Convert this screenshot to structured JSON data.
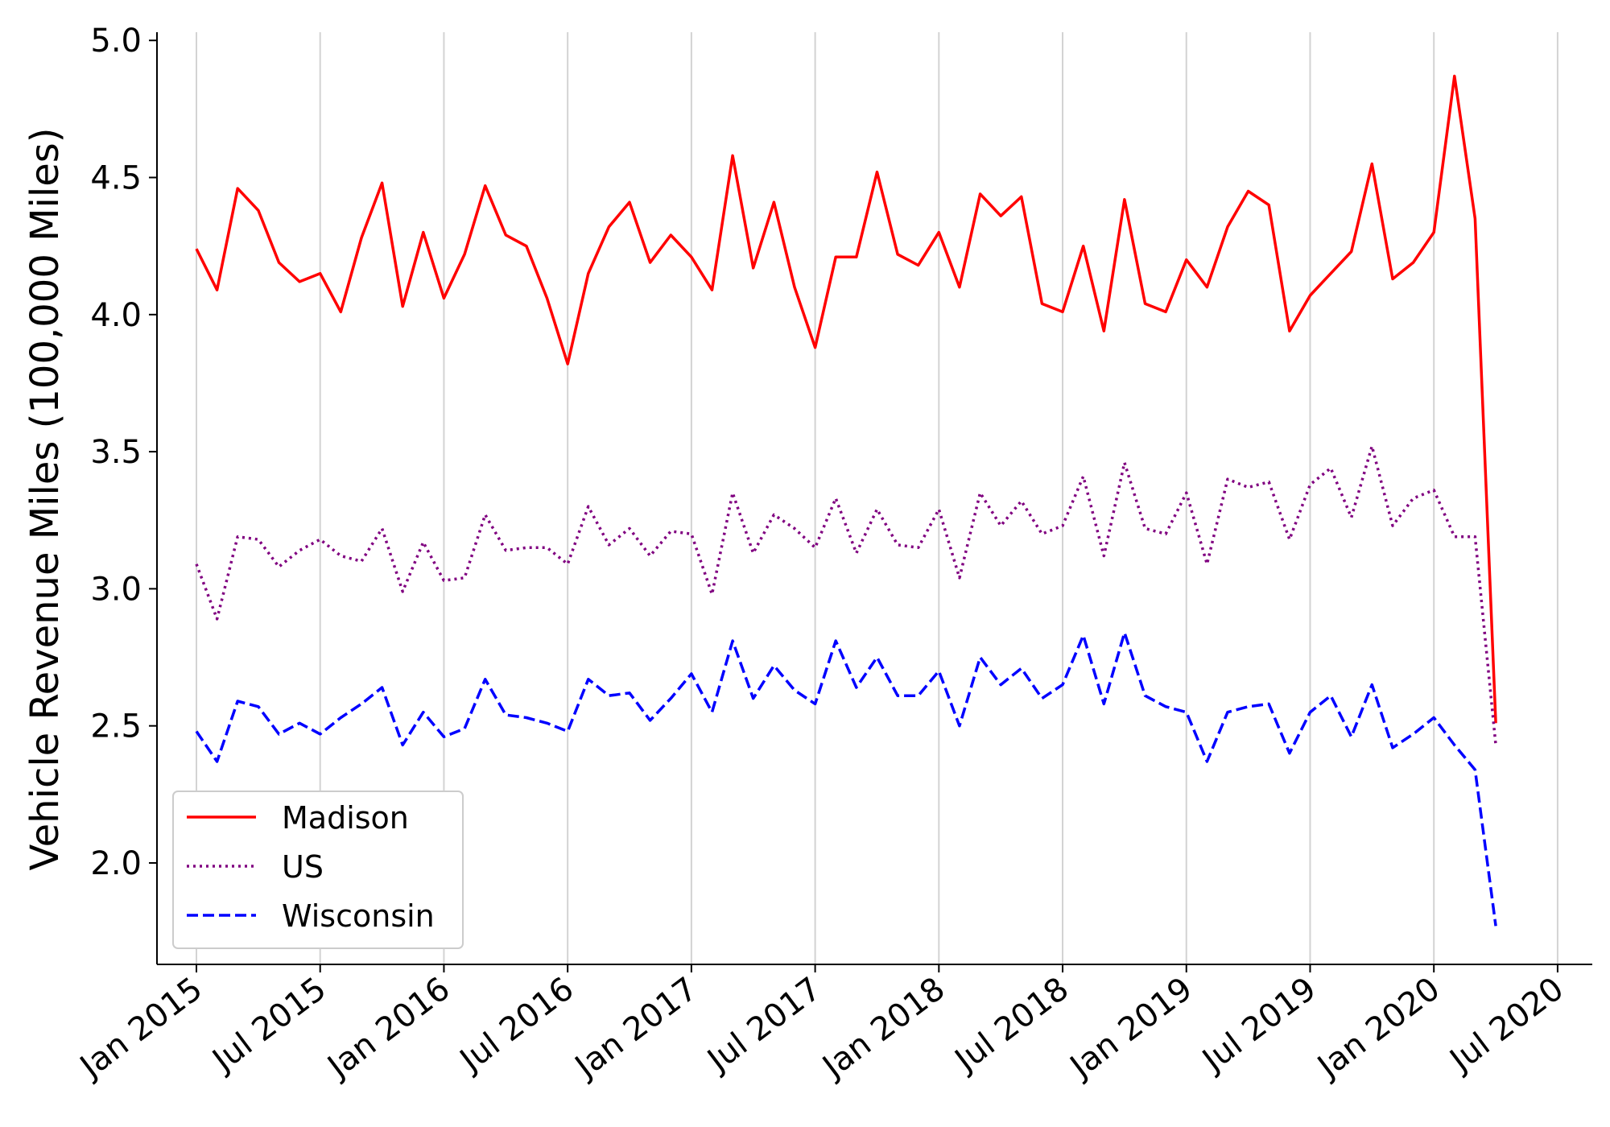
{
  "chart_data": {
    "type": "line",
    "title": "",
    "xlabel": "",
    "ylabel": "Vehicle Revenue Miles (100,000 Miles)",
    "x_start": "Jan 2015",
    "x_end": "Jun 2020",
    "x_ticks": [
      "Jan 2015",
      "Jul 2015",
      "Jan 2016",
      "Jul 2016",
      "Jan 2017",
      "Jul 2017",
      "Jan 2018",
      "Jul 2018",
      "Jan 2019",
      "Jul 2019",
      "Jan 2020",
      "Jul 2020"
    ],
    "y_ticks": [
      "2.0",
      "2.5",
      "3.0",
      "3.5",
      "4.0",
      "4.5",
      "5.0"
    ],
    "ylim": [
      1.63,
      5.03
    ],
    "grid": "vertical",
    "legend_position": "bottom-left",
    "series": [
      {
        "name": "Madison",
        "color": "#ff0000",
        "dash": "solid",
        "values": [
          4.24,
          4.09,
          4.46,
          4.38,
          4.19,
          4.12,
          4.15,
          4.01,
          4.28,
          4.48,
          4.03,
          4.3,
          4.06,
          4.22,
          4.47,
          4.29,
          4.25,
          4.06,
          3.82,
          4.15,
          4.32,
          4.41,
          4.19,
          4.29,
          4.21,
          4.09,
          4.58,
          4.17,
          4.41,
          4.1,
          3.88,
          4.21,
          4.21,
          4.52,
          4.22,
          4.18,
          4.3,
          4.1,
          4.44,
          4.36,
          4.43,
          4.04,
          4.01,
          4.25,
          3.94,
          4.42,
          4.04,
          4.01,
          4.2,
          4.1,
          4.32,
          4.45,
          4.4,
          3.94,
          4.07,
          4.15,
          4.23,
          4.55,
          4.13,
          4.19,
          4.3,
          4.87,
          4.35,
          2.51
        ]
      },
      {
        "name": "US",
        "color": "#800080",
        "dash": "dotted",
        "values": [
          3.09,
          2.89,
          3.19,
          3.18,
          3.08,
          3.14,
          3.18,
          3.12,
          3.1,
          3.22,
          2.99,
          3.17,
          3.03,
          3.04,
          3.27,
          3.14,
          3.15,
          3.15,
          3.09,
          3.3,
          3.16,
          3.22,
          3.12,
          3.21,
          3.2,
          2.98,
          3.35,
          3.13,
          3.27,
          3.22,
          3.15,
          3.33,
          3.13,
          3.29,
          3.16,
          3.15,
          3.29,
          3.04,
          3.35,
          3.23,
          3.32,
          3.2,
          3.23,
          3.41,
          3.12,
          3.46,
          3.22,
          3.2,
          3.35,
          3.09,
          3.4,
          3.37,
          3.39,
          3.18,
          3.38,
          3.44,
          3.26,
          3.52,
          3.23,
          3.33,
          3.36,
          3.19,
          3.19,
          2.43
        ]
      },
      {
        "name": "Wisconsin",
        "color": "#0000ff",
        "dash": "dashed",
        "values": [
          2.48,
          2.37,
          2.59,
          2.57,
          2.47,
          2.51,
          2.47,
          2.53,
          2.58,
          2.64,
          2.43,
          2.55,
          2.46,
          2.49,
          2.67,
          2.54,
          2.53,
          2.51,
          2.48,
          2.67,
          2.61,
          2.62,
          2.52,
          2.6,
          2.69,
          2.55,
          2.81,
          2.6,
          2.72,
          2.63,
          2.58,
          2.81,
          2.64,
          2.75,
          2.61,
          2.61,
          2.7,
          2.5,
          2.75,
          2.65,
          2.71,
          2.6,
          2.65,
          2.83,
          2.58,
          2.84,
          2.61,
          2.57,
          2.55,
          2.37,
          2.55,
          2.57,
          2.58,
          2.4,
          2.55,
          2.61,
          2.46,
          2.65,
          2.42,
          2.47,
          2.53,
          2.43,
          2.34,
          1.77
        ]
      }
    ]
  }
}
